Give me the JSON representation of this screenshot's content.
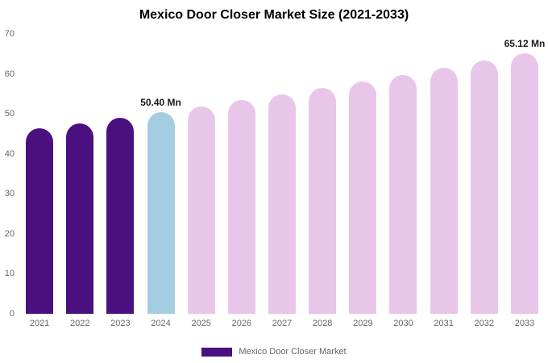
{
  "title": "Mexico Door Closer Market Size (2021-2033)",
  "legend": {
    "label": "Mexico Door Closer Market",
    "color": "#4a1080"
  },
  "colors": {
    "historical_bar": "#4a1080",
    "current_bar": "#a5cde2",
    "forecast_bar": "#e8c6e9",
    "title_text": "#000000",
    "axis_text": "#666666",
    "value_label_text": "#1a1a1a",
    "background": "#ffffff"
  },
  "chart_data": {
    "type": "bar",
    "title": "Mexico Door Closer Market Size (2021-2033)",
    "xlabel": "",
    "ylabel": "",
    "unit": "Mn",
    "categories": [
      "2021",
      "2022",
      "2023",
      "2024",
      "2025",
      "2026",
      "2027",
      "2028",
      "2029",
      "2030",
      "2031",
      "2032",
      "2033"
    ],
    "values": [
      46.3,
      47.6,
      49.0,
      50.4,
      51.9,
      53.4,
      54.9,
      56.5,
      58.1,
      59.8,
      61.6,
      63.3,
      65.12
    ],
    "bar_colors": [
      "#4a1080",
      "#4a1080",
      "#4a1080",
      "#a5cde2",
      "#e8c6e9",
      "#e8c6e9",
      "#e8c6e9",
      "#e8c6e9",
      "#e8c6e9",
      "#e8c6e9",
      "#e8c6e9",
      "#e8c6e9",
      "#e8c6e9"
    ],
    "value_labels": [
      null,
      null,
      null,
      "50.40 Mn",
      null,
      null,
      null,
      null,
      null,
      null,
      null,
      null,
      "65.12 Mn"
    ],
    "ylim": [
      0,
      70
    ],
    "yticks": [
      0,
      10,
      20,
      30,
      40,
      50,
      60,
      70
    ],
    "grid": false,
    "legend_entries": [
      "Mexico Door Closer Market"
    ],
    "legend_position": "bottom"
  }
}
